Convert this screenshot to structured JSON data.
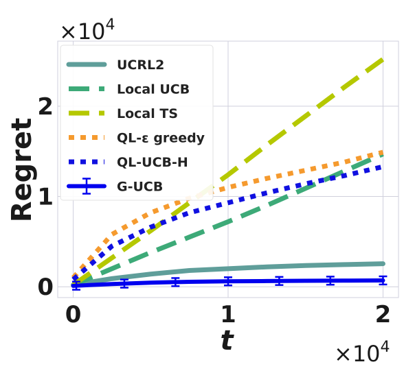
{
  "chart_data": {
    "type": "line",
    "title": "",
    "xlabel": "t",
    "ylabel": "Regret",
    "x_multiplier": "×10",
    "x_multiplier_exp": "4",
    "y_multiplier": "×10",
    "y_multiplier_exp": "4",
    "xlim": [
      -0.1,
      2.1
    ],
    "ylim": [
      -0.12,
      2.72
    ],
    "x_ticks": [
      0,
      1,
      2
    ],
    "y_ticks": [
      0,
      1,
      2
    ],
    "x_tick_labels": [
      "0",
      "1",
      "2"
    ],
    "y_tick_labels": [
      "0",
      "1",
      "2"
    ],
    "grid": true,
    "legend_position": "top-left",
    "series": [
      {
        "name": "UCRL2",
        "color": "#5f9e9a",
        "style": "solid",
        "x": [
          0,
          0.25,
          0.5,
          0.75,
          1.0,
          1.25,
          1.5,
          1.75,
          2.0
        ],
        "y": [
          0.02,
          0.09,
          0.14,
          0.18,
          0.2,
          0.22,
          0.235,
          0.245,
          0.255
        ]
      },
      {
        "name": "Local UCB",
        "color": "#3daa78",
        "style": "dashed",
        "x": [
          0,
          0.25,
          0.5,
          0.75,
          1.0,
          1.25,
          1.5,
          1.75,
          2.0
        ],
        "y": [
          0.02,
          0.2,
          0.38,
          0.55,
          0.72,
          0.9,
          1.09,
          1.28,
          1.47
        ]
      },
      {
        "name": "Local TS",
        "color": "#b5c800",
        "style": "dashed",
        "x": [
          0,
          0.25,
          0.5,
          0.75,
          1.0,
          1.25,
          1.5,
          1.75,
          2.0
        ],
        "y": [
          0.02,
          0.32,
          0.62,
          0.93,
          1.24,
          1.57,
          1.89,
          2.21,
          2.52
        ]
      },
      {
        "name": "QL-ε greedy",
        "color": "#f59a2e",
        "style": "dotted",
        "x": [
          0,
          0.25,
          0.5,
          0.75,
          1.0,
          1.25,
          1.5,
          1.75,
          2.0
        ],
        "y": [
          0.1,
          0.58,
          0.82,
          0.98,
          1.1,
          1.2,
          1.29,
          1.38,
          1.49
        ]
      },
      {
        "name": "QL-UCB-H",
        "color": "#1010e0",
        "style": "dotted",
        "x": [
          0,
          0.25,
          0.5,
          0.75,
          1.0,
          1.25,
          1.5,
          1.75,
          2.0
        ],
        "y": [
          0.08,
          0.45,
          0.66,
          0.82,
          0.93,
          1.04,
          1.14,
          1.23,
          1.33
        ]
      },
      {
        "name": "G-UCB",
        "color": "#0000ee",
        "style": "solid-errorbar",
        "x": [
          0,
          0.25,
          0.5,
          0.75,
          1.0,
          1.25,
          1.5,
          1.75,
          2.0
        ],
        "y": [
          0.01,
          0.03,
          0.045,
          0.055,
          0.06,
          0.063,
          0.066,
          0.068,
          0.07
        ],
        "errorbar_x": [
          0.02,
          0.33,
          0.66,
          1.0,
          1.33,
          1.66,
          2.0
        ],
        "errorbar_half_width": 0.045
      }
    ]
  }
}
